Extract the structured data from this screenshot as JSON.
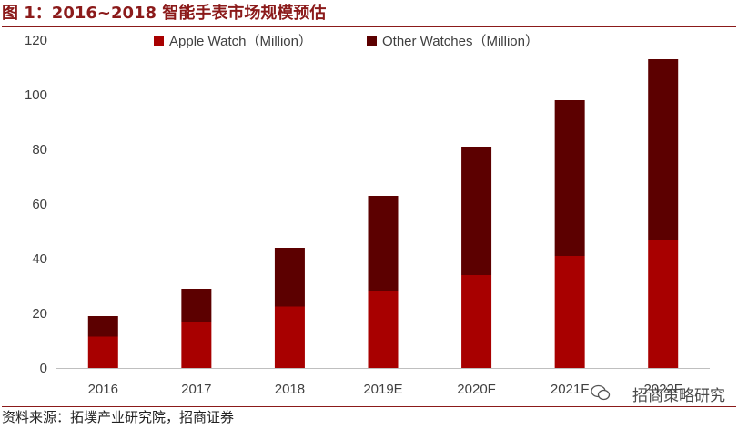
{
  "title": "图 1：2016~2018 智能手表市场规模预估",
  "footer": "资料来源：拓墣产业研究院，招商证券",
  "watermark": "招商策略研究",
  "colors": {
    "apple": "#a80000",
    "other": "#5c0000",
    "accent": "#8b1a1a"
  },
  "chart_data": {
    "type": "bar",
    "stacked": true,
    "categories": [
      "2016",
      "2017",
      "2018",
      "2019E",
      "2020F",
      "2021F",
      "2022F"
    ],
    "series": [
      {
        "name": "Apple Watch（Million）",
        "values": [
          11.5,
          17,
          22.5,
          28,
          34,
          41,
          47
        ]
      },
      {
        "name": "Other Watches（Million）",
        "values": [
          7.5,
          12,
          21.5,
          35,
          47,
          57,
          66
        ]
      }
    ],
    "yticks": [
      "0",
      "20",
      "40",
      "60",
      "80",
      "100",
      "120"
    ],
    "ylim": [
      0,
      120
    ],
    "grid": false,
    "legend_position": "top"
  }
}
